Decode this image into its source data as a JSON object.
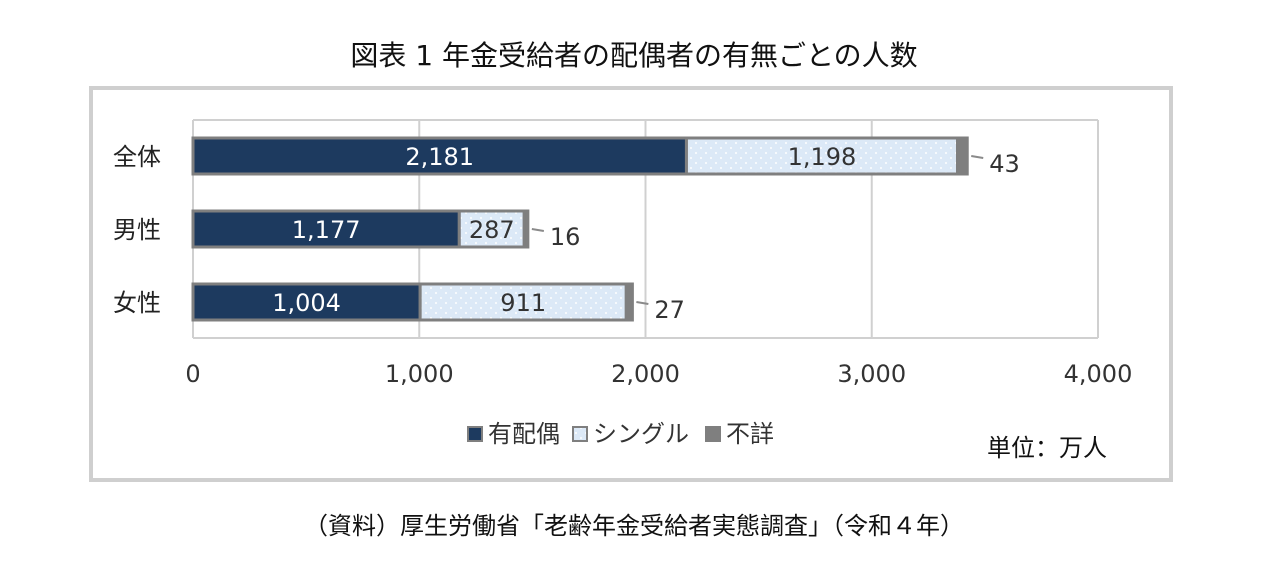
{
  "chart_data": {
    "type": "bar",
    "orientation": "horizontal",
    "stacked": true,
    "title": "図表 1 年金受給者の配偶者の有無ごとの人数",
    "categories": [
      "全体",
      "男性",
      "女性"
    ],
    "series": [
      {
        "name": "有配偶",
        "values": [
          2181,
          1177,
          1004
        ],
        "labels": [
          "2,181",
          "1,177",
          "1,004"
        ],
        "color": "#1d3a5f",
        "pattern": "solid"
      },
      {
        "name": "シングル",
        "values": [
          1198,
          287,
          911
        ],
        "labels": [
          "1,198",
          "287",
          "911"
        ],
        "color": "#dce9f7",
        "pattern": "dotted"
      },
      {
        "name": "不詳",
        "values": [
          43,
          16,
          27
        ],
        "labels": [
          "43",
          "16",
          "27"
        ],
        "color": "#7f7f7f",
        "pattern": "solid"
      }
    ],
    "xlim": [
      0,
      4000
    ],
    "xticks": [
      0,
      1000,
      2000,
      3000,
      4000
    ],
    "xtick_labels": [
      "0",
      "1,000",
      "2,000",
      "3,000",
      "4,000"
    ],
    "grid": true,
    "legend_position": "bottom",
    "unit": "単位：万人",
    "source": "（資料）厚生労働省「老齢年金受給者実態調査」（令和４年）"
  }
}
